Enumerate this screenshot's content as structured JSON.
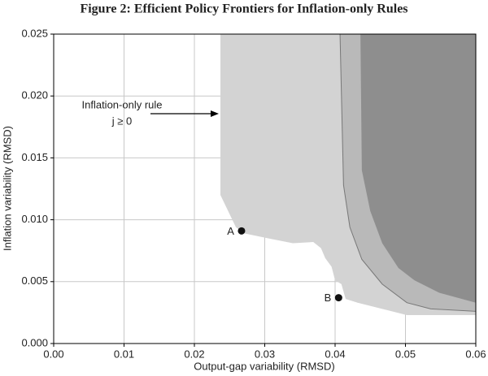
{
  "chart_data": {
    "type": "area",
    "title": "Figure 2: Efficient Policy Frontiers for Inflation-only Rules",
    "x_label": "Output-gap variability (RMSD)",
    "y_label": "Inflation variability (RMSD)",
    "xlim": [
      0,
      0.06
    ],
    "ylim": [
      0,
      0.025
    ],
    "xticks": [
      {
        "value": 0,
        "label": "0.00"
      },
      {
        "value": 0.01,
        "label": "0.01"
      },
      {
        "value": 0.02,
        "label": "0.02"
      },
      {
        "value": 0.03,
        "label": "0.03"
      },
      {
        "value": 0.04,
        "label": "0.04"
      },
      {
        "value": 0.05,
        "label": "0.05"
      },
      {
        "value": 0.06,
        "label": "0.06"
      }
    ],
    "yticks": [
      {
        "value": 0,
        "label": "0.000"
      },
      {
        "value": 0.005,
        "label": "0.005"
      },
      {
        "value": 0.01,
        "label": "0.010"
      },
      {
        "value": 0.015,
        "label": "0.015"
      },
      {
        "value": 0.02,
        "label": "0.020"
      },
      {
        "value": 0.025,
        "label": "0.025"
      }
    ],
    "grid": true,
    "series": [
      {
        "color": "#d3d3d3",
        "x": [
          0.0237,
          0.0237,
          0.0259,
          0.0271,
          0.0305,
          0.034,
          0.0369,
          0.038,
          0.0386,
          0.0395,
          0.04,
          0.0409,
          0.0415,
          0.0432,
          0.0467,
          0.0502,
          0.06
        ],
        "values": [
          0.025,
          0.012,
          0.0094,
          0.0089,
          0.0085,
          0.0081,
          0.0082,
          0.0077,
          0.0069,
          0.0062,
          0.0051,
          0.0048,
          0.0036,
          0.0033,
          0.0028,
          0.0023,
          0.0023
        ]
      },
      {
        "color": "#b9b9b9",
        "x": [
          0.0407,
          0.0412,
          0.0421,
          0.0438,
          0.0467,
          0.0502,
          0.0536,
          0.06
        ],
        "values": [
          0.025,
          0.0128,
          0.0094,
          0.0068,
          0.0048,
          0.0033,
          0.0028,
          0.0026
        ]
      },
      {
        "color": "#8e8e8e",
        "x": [
          0.0436,
          0.0438,
          0.045,
          0.0467,
          0.049,
          0.0513,
          0.0548,
          0.06
        ],
        "values": [
          0.025,
          0.014,
          0.0107,
          0.0081,
          0.0061,
          0.0051,
          0.0041,
          0.0033
        ]
      }
    ],
    "points": [
      {
        "label": "A",
        "x": 0.0267,
        "y": 0.0091
      },
      {
        "label": "B",
        "x": 0.0405,
        "y": 0.0037
      }
    ],
    "annotation": [
      "Inflation-only rule",
      "j ≥ 0"
    ]
  }
}
